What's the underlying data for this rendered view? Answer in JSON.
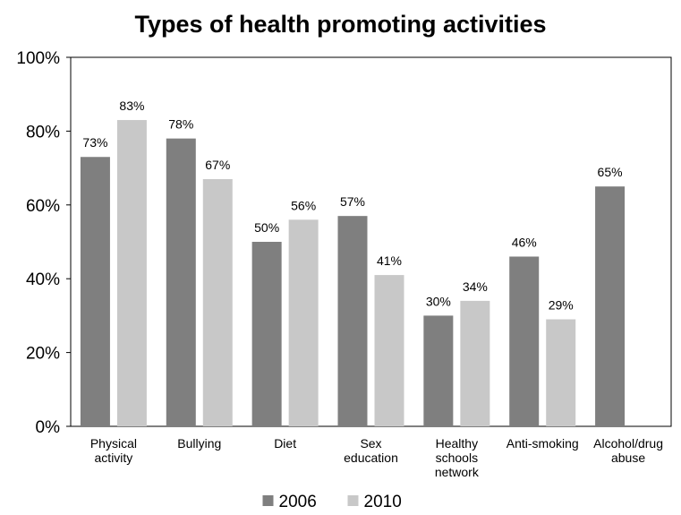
{
  "chart_data": {
    "type": "bar",
    "title": "Types of health promoting activities",
    "xlabel": "",
    "ylabel": "",
    "ylim": [
      0,
      100
    ],
    "yticks": [
      "0%",
      "20%",
      "40%",
      "60%",
      "80%",
      "100%"
    ],
    "ytick_values": [
      0,
      20,
      40,
      60,
      80,
      100
    ],
    "categories": [
      [
        "Physical",
        "activity"
      ],
      [
        "Bullying"
      ],
      [
        "Diet"
      ],
      [
        "Sex",
        "education"
      ],
      [
        "Healthy",
        "schools",
        "network"
      ],
      [
        "Anti-smoking"
      ],
      [
        "Alcohol/drug",
        "abuse"
      ]
    ],
    "series": [
      {
        "name": "2006",
        "color": "#7f7f7f",
        "values": [
          73,
          78,
          50,
          57,
          30,
          46,
          65
        ],
        "labels": [
          "73%",
          "78%",
          "50%",
          "57%",
          "30%",
          "46%",
          "65%"
        ]
      },
      {
        "name": "2010",
        "color": "#c8c8c8",
        "values": [
          83,
          67,
          56,
          41,
          34,
          29,
          null
        ],
        "labels": [
          "83%",
          "67%",
          "56%",
          "41%",
          "34%",
          "29%",
          null
        ]
      }
    ],
    "legend_position": "bottom",
    "grid": false
  }
}
